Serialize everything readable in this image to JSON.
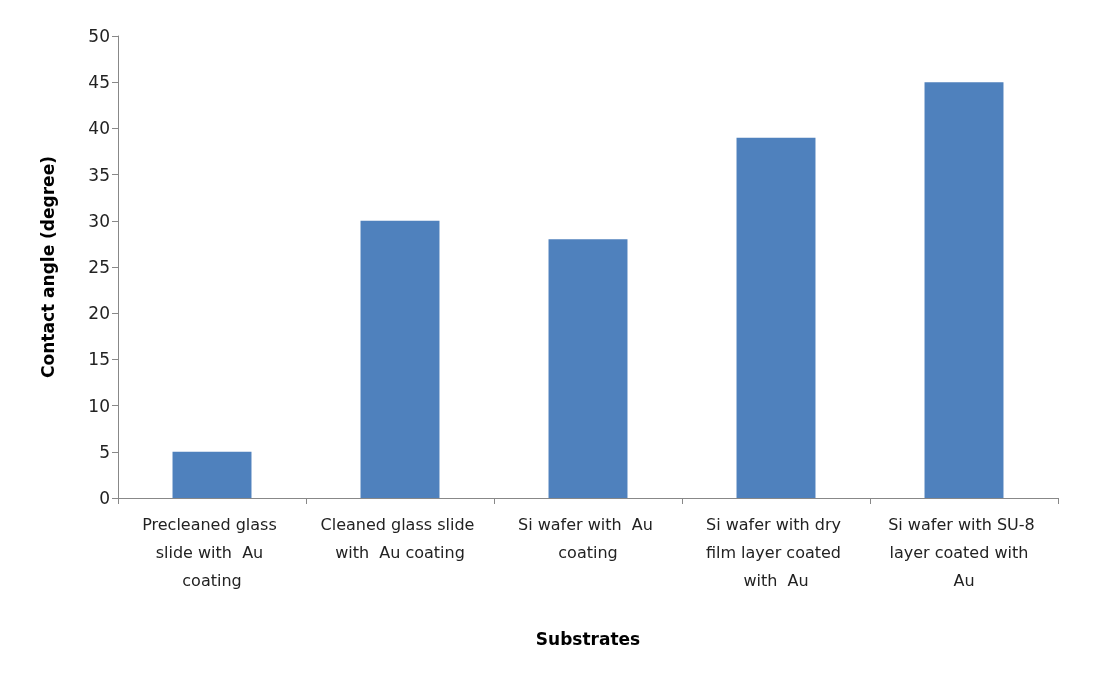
{
  "chart_data": {
    "type": "bar",
    "xlabel": "Substrates",
    "ylabel": "Contact angle (degree)",
    "categories": [
      "Precleaned glass slide with  Au coating",
      "Cleaned glass slide with  Au coating",
      "Si wafer with  Au coating",
      "Si wafer with dry film layer coated with  Au",
      "Si wafer with SU-8 layer coated with  Au"
    ],
    "values": [
      5,
      30,
      28,
      39,
      45
    ],
    "color": "#4f81bd",
    "ylim": [
      0,
      50
    ],
    "yticks": [
      0,
      5,
      10,
      15,
      20,
      25,
      30,
      35,
      40,
      45,
      50
    ],
    "grid": false
  }
}
